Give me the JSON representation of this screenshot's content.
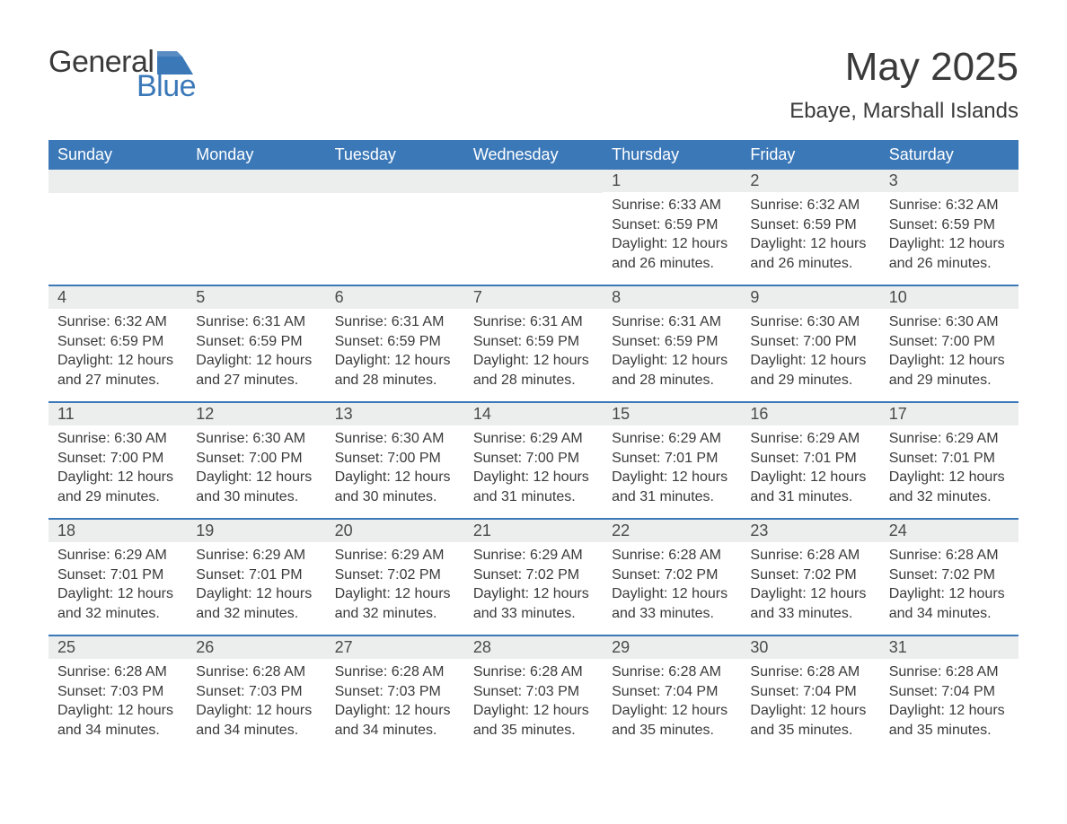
{
  "brand": {
    "text_top": "General",
    "text_bottom": "Blue",
    "accent_color": "#3b78b8",
    "text_color": "#3a3a3a"
  },
  "title": "May 2025",
  "location": "Ebaye, Marshall Islands",
  "colors": {
    "header_bg": "#3b78b8",
    "header_text": "#ffffff",
    "daynum_bg": "#eceded",
    "row_border": "#3b78b8",
    "body_text": "#3a3a3a",
    "page_bg": "#ffffff"
  },
  "typography": {
    "title_fontsize": 44,
    "location_fontsize": 24,
    "weekday_fontsize": 18,
    "daynum_fontsize": 18,
    "body_fontsize": 16
  },
  "weekdays": [
    "Sunday",
    "Monday",
    "Tuesday",
    "Wednesday",
    "Thursday",
    "Friday",
    "Saturday"
  ],
  "weeks": [
    [
      null,
      null,
      null,
      null,
      {
        "day": "1",
        "sunrise": "Sunrise: 6:33 AM",
        "sunset": "Sunset: 6:59 PM",
        "dl1": "Daylight: 12 hours",
        "dl2": "and 26 minutes."
      },
      {
        "day": "2",
        "sunrise": "Sunrise: 6:32 AM",
        "sunset": "Sunset: 6:59 PM",
        "dl1": "Daylight: 12 hours",
        "dl2": "and 26 minutes."
      },
      {
        "day": "3",
        "sunrise": "Sunrise: 6:32 AM",
        "sunset": "Sunset: 6:59 PM",
        "dl1": "Daylight: 12 hours",
        "dl2": "and 26 minutes."
      }
    ],
    [
      {
        "day": "4",
        "sunrise": "Sunrise: 6:32 AM",
        "sunset": "Sunset: 6:59 PM",
        "dl1": "Daylight: 12 hours",
        "dl2": "and 27 minutes."
      },
      {
        "day": "5",
        "sunrise": "Sunrise: 6:31 AM",
        "sunset": "Sunset: 6:59 PM",
        "dl1": "Daylight: 12 hours",
        "dl2": "and 27 minutes."
      },
      {
        "day": "6",
        "sunrise": "Sunrise: 6:31 AM",
        "sunset": "Sunset: 6:59 PM",
        "dl1": "Daylight: 12 hours",
        "dl2": "and 28 minutes."
      },
      {
        "day": "7",
        "sunrise": "Sunrise: 6:31 AM",
        "sunset": "Sunset: 6:59 PM",
        "dl1": "Daylight: 12 hours",
        "dl2": "and 28 minutes."
      },
      {
        "day": "8",
        "sunrise": "Sunrise: 6:31 AM",
        "sunset": "Sunset: 6:59 PM",
        "dl1": "Daylight: 12 hours",
        "dl2": "and 28 minutes."
      },
      {
        "day": "9",
        "sunrise": "Sunrise: 6:30 AM",
        "sunset": "Sunset: 7:00 PM",
        "dl1": "Daylight: 12 hours",
        "dl2": "and 29 minutes."
      },
      {
        "day": "10",
        "sunrise": "Sunrise: 6:30 AM",
        "sunset": "Sunset: 7:00 PM",
        "dl1": "Daylight: 12 hours",
        "dl2": "and 29 minutes."
      }
    ],
    [
      {
        "day": "11",
        "sunrise": "Sunrise: 6:30 AM",
        "sunset": "Sunset: 7:00 PM",
        "dl1": "Daylight: 12 hours",
        "dl2": "and 29 minutes."
      },
      {
        "day": "12",
        "sunrise": "Sunrise: 6:30 AM",
        "sunset": "Sunset: 7:00 PM",
        "dl1": "Daylight: 12 hours",
        "dl2": "and 30 minutes."
      },
      {
        "day": "13",
        "sunrise": "Sunrise: 6:30 AM",
        "sunset": "Sunset: 7:00 PM",
        "dl1": "Daylight: 12 hours",
        "dl2": "and 30 minutes."
      },
      {
        "day": "14",
        "sunrise": "Sunrise: 6:29 AM",
        "sunset": "Sunset: 7:00 PM",
        "dl1": "Daylight: 12 hours",
        "dl2": "and 31 minutes."
      },
      {
        "day": "15",
        "sunrise": "Sunrise: 6:29 AM",
        "sunset": "Sunset: 7:01 PM",
        "dl1": "Daylight: 12 hours",
        "dl2": "and 31 minutes."
      },
      {
        "day": "16",
        "sunrise": "Sunrise: 6:29 AM",
        "sunset": "Sunset: 7:01 PM",
        "dl1": "Daylight: 12 hours",
        "dl2": "and 31 minutes."
      },
      {
        "day": "17",
        "sunrise": "Sunrise: 6:29 AM",
        "sunset": "Sunset: 7:01 PM",
        "dl1": "Daylight: 12 hours",
        "dl2": "and 32 minutes."
      }
    ],
    [
      {
        "day": "18",
        "sunrise": "Sunrise: 6:29 AM",
        "sunset": "Sunset: 7:01 PM",
        "dl1": "Daylight: 12 hours",
        "dl2": "and 32 minutes."
      },
      {
        "day": "19",
        "sunrise": "Sunrise: 6:29 AM",
        "sunset": "Sunset: 7:01 PM",
        "dl1": "Daylight: 12 hours",
        "dl2": "and 32 minutes."
      },
      {
        "day": "20",
        "sunrise": "Sunrise: 6:29 AM",
        "sunset": "Sunset: 7:02 PM",
        "dl1": "Daylight: 12 hours",
        "dl2": "and 32 minutes."
      },
      {
        "day": "21",
        "sunrise": "Sunrise: 6:29 AM",
        "sunset": "Sunset: 7:02 PM",
        "dl1": "Daylight: 12 hours",
        "dl2": "and 33 minutes."
      },
      {
        "day": "22",
        "sunrise": "Sunrise: 6:28 AM",
        "sunset": "Sunset: 7:02 PM",
        "dl1": "Daylight: 12 hours",
        "dl2": "and 33 minutes."
      },
      {
        "day": "23",
        "sunrise": "Sunrise: 6:28 AM",
        "sunset": "Sunset: 7:02 PM",
        "dl1": "Daylight: 12 hours",
        "dl2": "and 33 minutes."
      },
      {
        "day": "24",
        "sunrise": "Sunrise: 6:28 AM",
        "sunset": "Sunset: 7:02 PM",
        "dl1": "Daylight: 12 hours",
        "dl2": "and 34 minutes."
      }
    ],
    [
      {
        "day": "25",
        "sunrise": "Sunrise: 6:28 AM",
        "sunset": "Sunset: 7:03 PM",
        "dl1": "Daylight: 12 hours",
        "dl2": "and 34 minutes."
      },
      {
        "day": "26",
        "sunrise": "Sunrise: 6:28 AM",
        "sunset": "Sunset: 7:03 PM",
        "dl1": "Daylight: 12 hours",
        "dl2": "and 34 minutes."
      },
      {
        "day": "27",
        "sunrise": "Sunrise: 6:28 AM",
        "sunset": "Sunset: 7:03 PM",
        "dl1": "Daylight: 12 hours",
        "dl2": "and 34 minutes."
      },
      {
        "day": "28",
        "sunrise": "Sunrise: 6:28 AM",
        "sunset": "Sunset: 7:03 PM",
        "dl1": "Daylight: 12 hours",
        "dl2": "and 35 minutes."
      },
      {
        "day": "29",
        "sunrise": "Sunrise: 6:28 AM",
        "sunset": "Sunset: 7:04 PM",
        "dl1": "Daylight: 12 hours",
        "dl2": "and 35 minutes."
      },
      {
        "day": "30",
        "sunrise": "Sunrise: 6:28 AM",
        "sunset": "Sunset: 7:04 PM",
        "dl1": "Daylight: 12 hours",
        "dl2": "and 35 minutes."
      },
      {
        "day": "31",
        "sunrise": "Sunrise: 6:28 AM",
        "sunset": "Sunset: 7:04 PM",
        "dl1": "Daylight: 12 hours",
        "dl2": "and 35 minutes."
      }
    ]
  ]
}
